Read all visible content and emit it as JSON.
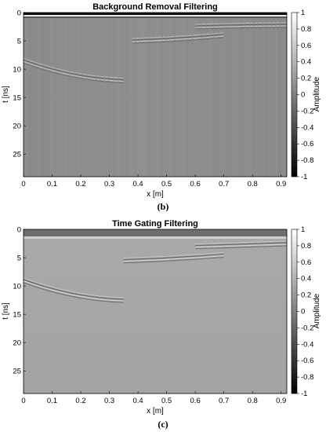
{
  "chart_data": [
    {
      "type": "heatmap",
      "title": "Background Removal Filtering",
      "xlabel": "x [m]",
      "ylabel": "t [ns]",
      "colorbar_label": "Amplitude",
      "caption": "(b)",
      "x_range": [
        0,
        0.92
      ],
      "y_range": [
        0,
        29
      ],
      "y_reversed": true,
      "x_ticks": [
        "0",
        "0.1",
        "0.2",
        "0.3",
        "0.4",
        "0.5",
        "0.6",
        "0.7",
        "0.8",
        "0.9"
      ],
      "y_ticks": [
        "0",
        "5",
        "10",
        "15",
        "20",
        "25"
      ],
      "colorbar_range": [
        -1,
        1
      ],
      "colorbar_ticks": [
        "1",
        "0.8",
        "0.6",
        "0.4",
        "0.2",
        "0",
        "-0.2",
        "-0.4",
        "-0.6",
        "-0.8",
        "-1"
      ],
      "colormap": "gray",
      "background_level": 0.05,
      "top_band": {
        "t_start": 0,
        "t_end": 1.2,
        "level": "high/low oscillation"
      },
      "reflections": [
        {
          "x_start": 0.0,
          "x_end": 0.35,
          "t_start": 8.5,
          "t_end": 12.0
        },
        {
          "x_start": 0.38,
          "x_end": 0.7,
          "t_start": 5.0,
          "t_end": 4.0
        },
        {
          "x_start": 0.6,
          "x_end": 0.92,
          "t_start": 2.5,
          "t_end": 2.2
        }
      ]
    },
    {
      "type": "heatmap",
      "title": "Time Gating Filtering",
      "xlabel": "x [m]",
      "ylabel": "t [ns]",
      "colorbar_label": "Amplitude",
      "caption": "(c)",
      "x_range": [
        0,
        0.92
      ],
      "y_range": [
        0,
        29
      ],
      "y_reversed": true,
      "x_ticks": [
        "0",
        "0.1",
        "0.2",
        "0.3",
        "0.4",
        "0.5",
        "0.6",
        "0.7",
        "0.8",
        "0.9"
      ],
      "y_ticks": [
        "0",
        "5",
        "10",
        "15",
        "20",
        "25"
      ],
      "colorbar_range": [
        -1,
        1
      ],
      "colorbar_ticks": [
        "1",
        "0.8",
        "0.6",
        "0.4",
        "0.2",
        "0",
        "-0.2",
        "-0.4",
        "-0.6",
        "-0.8",
        "-1"
      ],
      "colormap": "gray",
      "background_level": 0.25,
      "gated_region": {
        "t_start": 0,
        "t_end": 1.3,
        "level": -0.2
      },
      "reflections": [
        {
          "x_start": 0.0,
          "x_end": 0.35,
          "t_start": 9.0,
          "t_end": 12.5
        },
        {
          "x_start": 0.35,
          "x_end": 0.7,
          "t_start": 5.5,
          "t_end": 4.5
        },
        {
          "x_start": 0.6,
          "x_end": 0.92,
          "t_start": 3.0,
          "t_end": 2.5
        }
      ]
    }
  ]
}
